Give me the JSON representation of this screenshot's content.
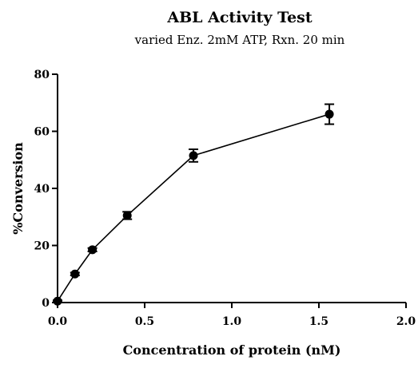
{
  "chart_data": {
    "type": "scatter",
    "title": "ABL Activity Test",
    "subtitle": "varied Enz. 2mM ATP, Rxn. 20 min",
    "xlabel": "Concentration of protein (nM)",
    "ylabel": "%Conversion",
    "xlim": [
      0.0,
      2.0
    ],
    "ylim": [
      0,
      80
    ],
    "x_ticks": [
      0.0,
      0.5,
      1.0,
      1.5,
      2.0
    ],
    "x_tick_labels": [
      "0.0",
      "0.5",
      "1.0",
      "1.5",
      "2.0"
    ],
    "y_ticks": [
      0,
      20,
      40,
      60,
      80
    ],
    "y_tick_labels": [
      "0",
      "20",
      "40",
      "60",
      "80"
    ],
    "grid": false,
    "connected": true,
    "series": [
      {
        "x": [
          0.0,
          0.1,
          0.2,
          0.4,
          0.78,
          1.56
        ],
        "y": [
          0.5,
          10,
          18.5,
          30.5,
          51.5,
          66
        ],
        "error": [
          0.3,
          0.5,
          0.6,
          1.3,
          2.2,
          3.5
        ]
      }
    ]
  }
}
